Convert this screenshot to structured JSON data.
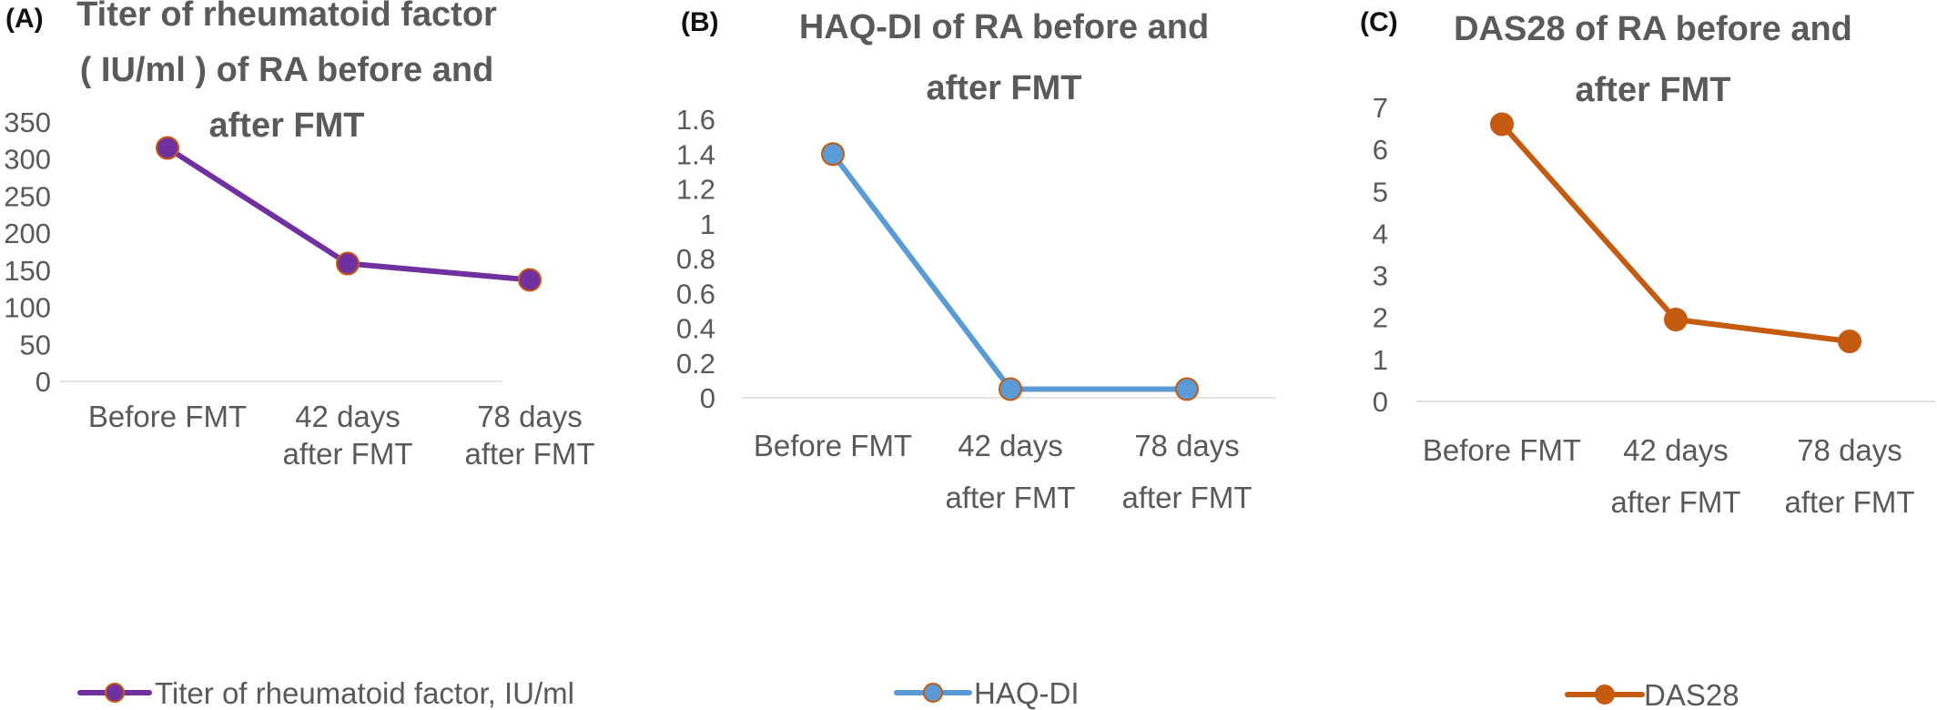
{
  "chart_data": [
    {
      "type": "line",
      "panel": "(A)",
      "title_lines": [
        "Titer of rheumatoid factor",
        "( IU/ml )  of RA before and",
        "after FMT"
      ],
      "categories": [
        [
          "Before FMT"
        ],
        [
          "42 days",
          "after FMT"
        ],
        [
          "78 days",
          "after FMT"
        ]
      ],
      "series": [
        {
          "name": "Titer of rheumatoid factor, IU/ml",
          "values": [
            315,
            159,
            137
          ]
        }
      ],
      "y_ticks": [
        "0",
        "50",
        "100",
        "150",
        "200",
        "250",
        "300",
        "350"
      ],
      "ylim": [
        0,
        350
      ],
      "grid": false,
      "legend_position": "bottom",
      "line_color": "#7030a0",
      "marker_color": "#7030a0",
      "marker_edge_color": "#c55a11"
    },
    {
      "type": "line",
      "panel": "(B)",
      "title_lines": [
        "HAQ-DI of RA before and",
        "after FMT"
      ],
      "categories": [
        [
          "Before FMT"
        ],
        [
          "42 days",
          "after FMT"
        ],
        [
          "78 days",
          "after FMT"
        ]
      ],
      "series": [
        {
          "name": "HAQ-DI",
          "values": [
            1.4,
            0.05,
            0.05
          ]
        }
      ],
      "y_ticks": [
        "0",
        "0.2",
        "0.4",
        "0.6",
        "0.8",
        "1",
        "1.2",
        "1.4",
        "1.6"
      ],
      "ylim": [
        0,
        1.6
      ],
      "grid": false,
      "legend_position": "bottom",
      "line_color": "#5b9bd5",
      "marker_color": "#5b9bd5",
      "marker_edge_color": "#c55a11"
    },
    {
      "type": "line",
      "panel": "(C)",
      "title_lines": [
        "DAS28 of RA before and",
        "after FMT"
      ],
      "categories": [
        [
          "Before FMT"
        ],
        [
          "42 days",
          "after FMT"
        ],
        [
          "78 days",
          "after FMT"
        ]
      ],
      "series": [
        {
          "name": "DAS28",
          "values": [
            6.6,
            1.95,
            1.43
          ]
        }
      ],
      "y_ticks": [
        "0",
        "1",
        "2",
        "3",
        "4",
        "5",
        "6",
        "7"
      ],
      "ylim": [
        0,
        7
      ],
      "grid": false,
      "legend_position": "bottom",
      "line_color": "#c55a11",
      "marker_color": "#c55a11",
      "marker_edge_color": "#c55a11"
    }
  ]
}
